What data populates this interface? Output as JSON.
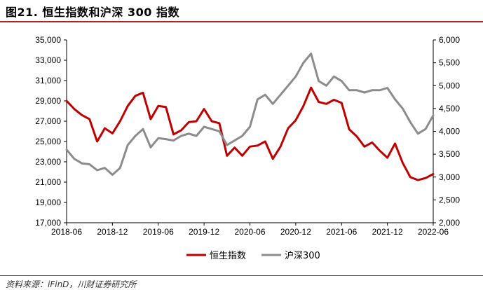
{
  "title": "图21.  恒生指数和沪深 300 指数",
  "source": "资料来源：iFinD，川财证券研究所",
  "chart_data": {
    "type": "line",
    "title": "",
    "xlabel": "",
    "ylabel": "",
    "x_ticks": [
      "2018-06",
      "2018-12",
      "2019-06",
      "2019-12",
      "2020-06",
      "2020-12",
      "2021-06",
      "2021-12",
      "2022-06"
    ],
    "x_range": [
      "2018-06",
      "2022-06"
    ],
    "left_axis": {
      "range": [
        17000,
        35000
      ],
      "ticks": [
        17000,
        19000,
        21000,
        23000,
        25000,
        27000,
        29000,
        31000,
        33000,
        35000
      ],
      "tick_labels": [
        "17,000",
        "19,000",
        "21,000",
        "23,000",
        "25,000",
        "27,000",
        "29,000",
        "31,000",
        "33,000",
        "35,000"
      ]
    },
    "right_axis": {
      "range": [
        2000,
        6000
      ],
      "ticks": [
        2000,
        2500,
        3000,
        3500,
        4000,
        4500,
        5000,
        5500,
        6000
      ],
      "tick_labels": [
        "2,000",
        "2,500",
        "3,000",
        "3,500",
        "4,000",
        "4,500",
        "5,000",
        "5,500",
        "6,000"
      ]
    },
    "legend_position": "bottom-center",
    "grid": false,
    "series": [
      {
        "name": "恒生指数",
        "axis": "left",
        "color": "#c00000",
        "x": [
          "2018-06",
          "2018-07",
          "2018-08",
          "2018-09",
          "2018-10",
          "2018-11",
          "2018-12",
          "2019-01",
          "2019-02",
          "2019-03",
          "2019-04",
          "2019-05",
          "2019-06",
          "2019-07",
          "2019-08",
          "2019-09",
          "2019-10",
          "2019-11",
          "2019-12",
          "2020-01",
          "2020-02",
          "2020-03",
          "2020-04",
          "2020-05",
          "2020-06",
          "2020-07",
          "2020-08",
          "2020-09",
          "2020-10",
          "2020-11",
          "2020-12",
          "2021-01",
          "2021-02",
          "2021-03",
          "2021-04",
          "2021-05",
          "2021-06",
          "2021-07",
          "2021-08",
          "2021-09",
          "2021-10",
          "2021-11",
          "2021-12",
          "2022-01",
          "2022-02",
          "2022-03",
          "2022-04",
          "2022-05",
          "2022-06"
        ],
        "values": [
          29000,
          28200,
          27600,
          27200,
          25000,
          26300,
          25800,
          27000,
          28500,
          29500,
          29800,
          27200,
          28500,
          28400,
          25700,
          26100,
          26900,
          27000,
          28200,
          27000,
          26800,
          23600,
          24400,
          23600,
          24500,
          24600,
          25000,
          23300,
          24500,
          26300,
          27100,
          28500,
          30300,
          28900,
          28700,
          29100,
          28800,
          26200,
          25500,
          24500,
          24900,
          24100,
          23400,
          24800,
          22900,
          21500,
          21200,
          21400,
          21800
        ]
      },
      {
        "name": "沪深300",
        "axis": "right",
        "color": "#8c8c8c",
        "x": [
          "2018-06",
          "2018-07",
          "2018-08",
          "2018-09",
          "2018-10",
          "2018-11",
          "2018-12",
          "2019-01",
          "2019-02",
          "2019-03",
          "2019-04",
          "2019-05",
          "2019-06",
          "2019-07",
          "2019-08",
          "2019-09",
          "2019-10",
          "2019-11",
          "2019-12",
          "2020-01",
          "2020-02",
          "2020-03",
          "2020-04",
          "2020-05",
          "2020-06",
          "2020-07",
          "2020-08",
          "2020-09",
          "2020-10",
          "2020-11",
          "2020-12",
          "2021-01",
          "2021-02",
          "2021-03",
          "2021-04",
          "2021-05",
          "2021-06",
          "2021-07",
          "2021-08",
          "2021-09",
          "2021-10",
          "2021-11",
          "2021-12",
          "2022-01",
          "2022-02",
          "2022-03",
          "2022-04",
          "2022-05",
          "2022-06"
        ],
        "values": [
          3600,
          3400,
          3300,
          3280,
          3150,
          3200,
          3050,
          3200,
          3700,
          3900,
          4050,
          3650,
          3850,
          3830,
          3800,
          3900,
          3950,
          3900,
          4100,
          4050,
          4000,
          3700,
          3800,
          3900,
          4100,
          4700,
          4800,
          4600,
          4800,
          5000,
          5200,
          5500,
          5700,
          5100,
          5000,
          5200,
          5100,
          4900,
          4900,
          4850,
          4900,
          4900,
          4950,
          4700,
          4500,
          4200,
          3950,
          4050,
          4350
        ]
      }
    ]
  }
}
